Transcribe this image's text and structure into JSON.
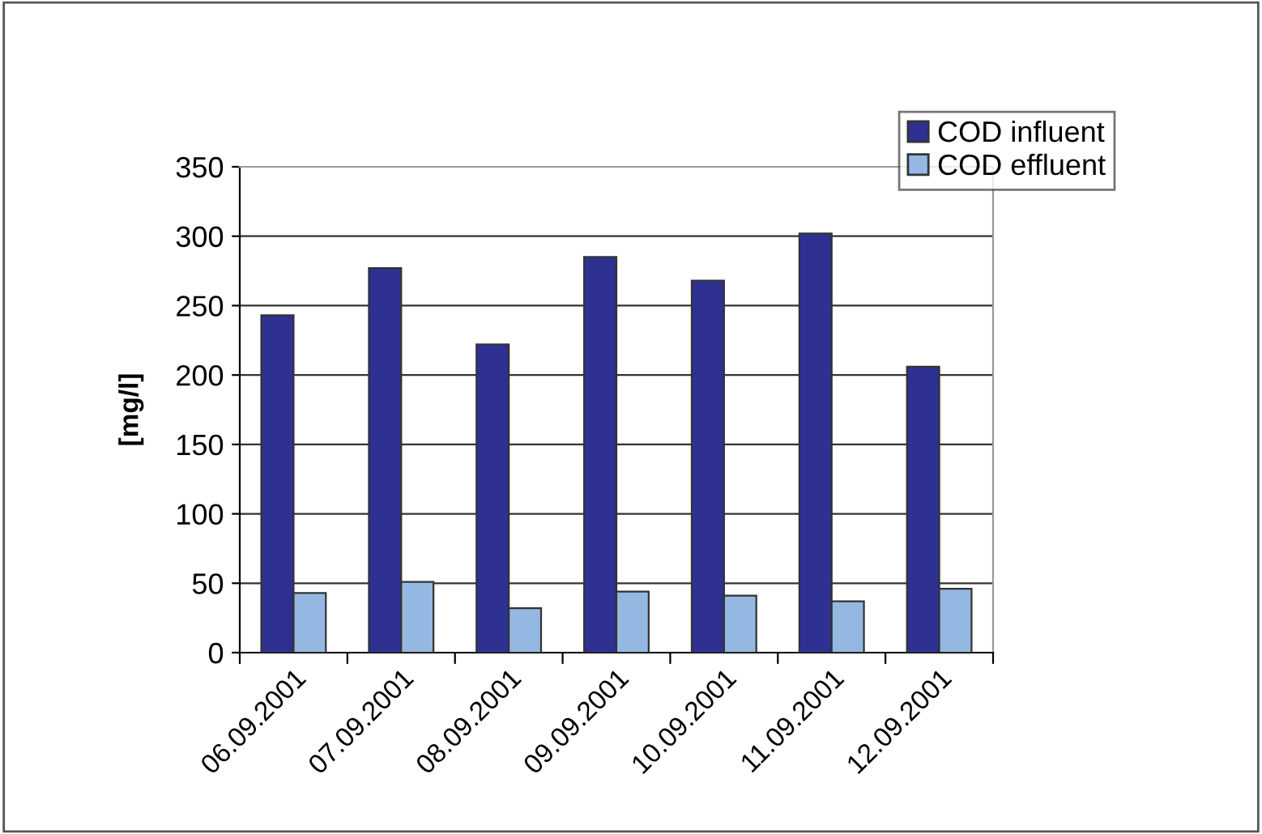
{
  "chart_data": {
    "type": "bar",
    "ylabel": "[mg/l]",
    "categories": [
      "06.09.2001",
      "07.09.2001",
      "08.09.2001",
      "09.09.2001",
      "10.09.2001",
      "11.09.2001",
      "12.09.2001"
    ],
    "series": [
      {
        "name": "COD influent",
        "color": "#2e3192",
        "values": [
          243,
          277,
          222,
          285,
          268,
          302,
          206
        ]
      },
      {
        "name": "COD effluent",
        "color": "#95b8e3",
        "values": [
          43,
          51,
          32,
          44,
          41,
          37,
          46
        ]
      }
    ],
    "ylim": [
      0,
      350
    ],
    "yticks": [
      0,
      50,
      100,
      150,
      200,
      250,
      300,
      350
    ],
    "grid": "y",
    "legend": "top right"
  }
}
